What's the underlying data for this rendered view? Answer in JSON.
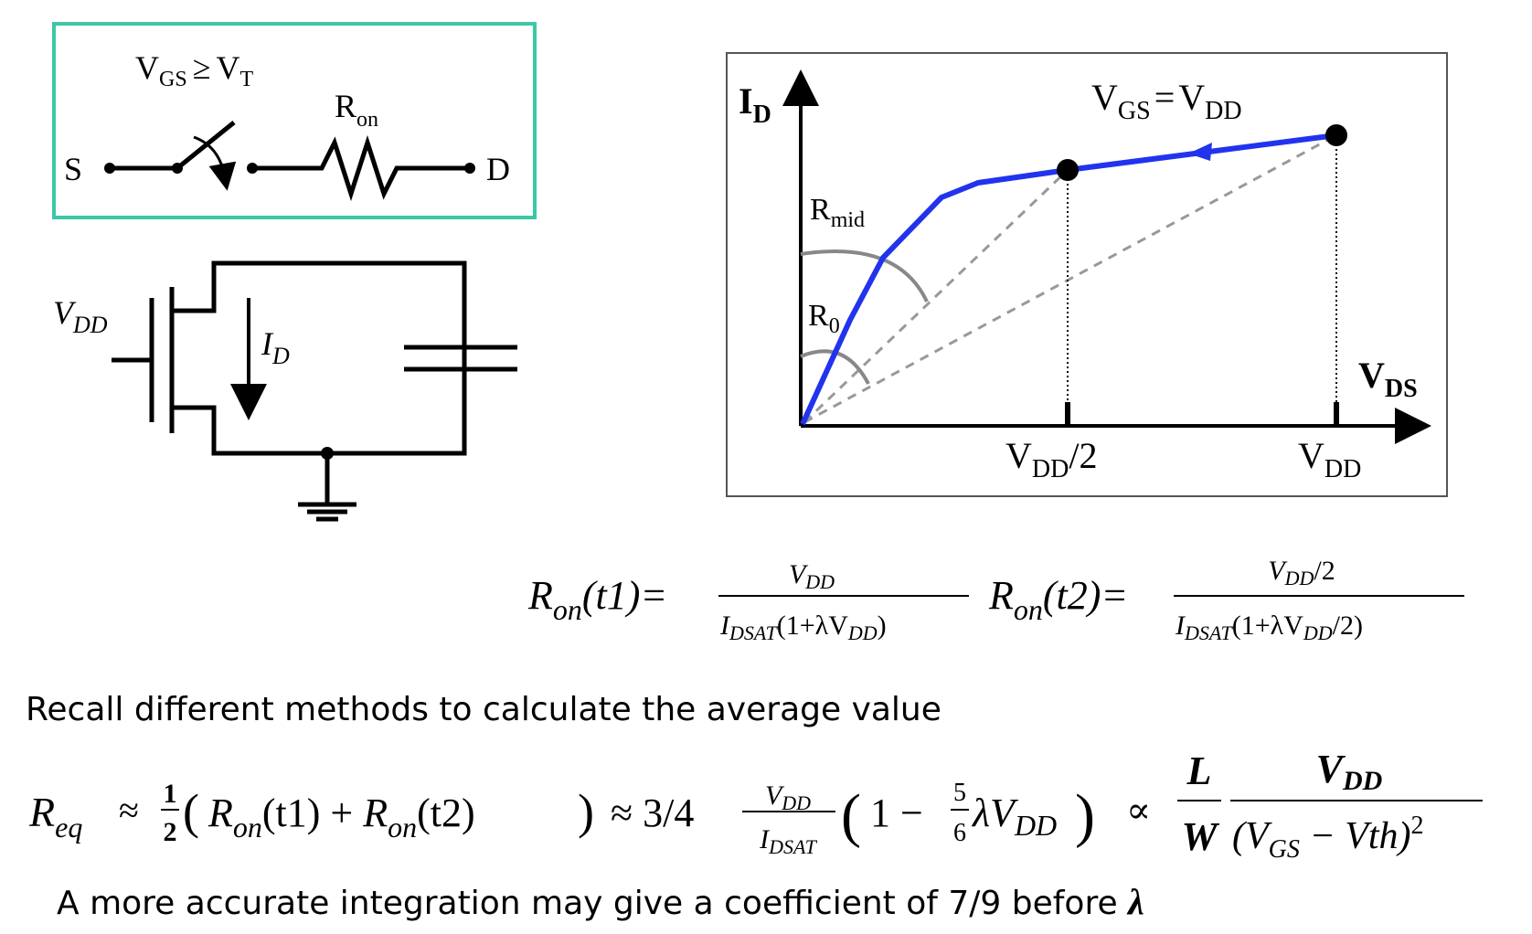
{
  "switch_model": {
    "condition_v": "V",
    "condition_gs": "GS",
    "condition_op": "≥",
    "condition_v2": "V",
    "condition_t": "T",
    "r_label": "R",
    "r_sub": "on",
    "source": "S",
    "drain": "D",
    "border_color": "#3cc7a6"
  },
  "circuit": {
    "vdd_v": "V",
    "vdd_sub": "DD",
    "id_i": "I",
    "id_sub": "D"
  },
  "graph": {
    "y_axis_i": "I",
    "y_axis_sub": "D",
    "x_axis_v": "V",
    "x_axis_sub": "DS",
    "curve_v": "V",
    "curve_gs": "GS",
    "curve_eq": "=",
    "curve_v2": "V",
    "curve_dd": "DD",
    "rmid_r": "R",
    "rmid_sub": "mid",
    "r0_r": "R",
    "r0_sub": "0",
    "tick1_v": "V",
    "tick1_sub": "DD",
    "tick1_suffix": "/2",
    "tick2_v": "V",
    "tick2_sub": "DD",
    "curve_color": "#2233ee"
  },
  "equations": {
    "ron_r": "R",
    "ron_sub": "on",
    "t1": "(t1)=",
    "t2": "(t2)=",
    "t1_num_v": "V",
    "t1_num_sub": "DD",
    "t1_den_i": "I",
    "t1_den_sub": "DSAT",
    "t1_den_rest": "(1+λV",
    "t1_den_sub2": "DD",
    "t1_den_close": ")",
    "t2_num_v": "V",
    "t2_num_sub": "DD",
    "t2_num_rest": "/2",
    "t2_den_i": "I",
    "t2_den_sub": "DSAT",
    "t2_den_rest": "(1+λV",
    "t2_den_sub2": "DD",
    "t2_den_close": "/2)"
  },
  "recall_text": "Recall different methods to calculate the average value",
  "req": {
    "r": "R",
    "r_sub": "eq",
    "approx": "≈",
    "half_num": "1",
    "half_den": "2",
    "paren_open": "(",
    "ron_r": "R",
    "ron_sub": "on",
    "t1": "(t1) + ",
    "ron2_r": "R",
    "ron2_sub": "on",
    "t2": "(t2)",
    "paren_close": ")",
    "approx2": "≈ 3/4",
    "frac_num_v": "V",
    "frac_num_sub": "DD",
    "frac_den_i": "I",
    "frac_den_sub": "DSAT",
    "big_open": "(",
    "one_minus": "1 −",
    "five": "5",
    "six": "6",
    "lambda_v": "λV",
    "lambda_sub": "DD",
    "big_close": ")",
    "propto": "∝",
    "L": "L",
    "W": "W",
    "vdd_v": "V",
    "vdd_sub": "DD",
    "den_open": "(V",
    "den_sub": "GS",
    "den_rest": " − Vth)",
    "den_sup": "2"
  },
  "accurate_text": "A more accurate integration may give a coefficient of 7/9 before ",
  "accurate_lambda": "λ"
}
